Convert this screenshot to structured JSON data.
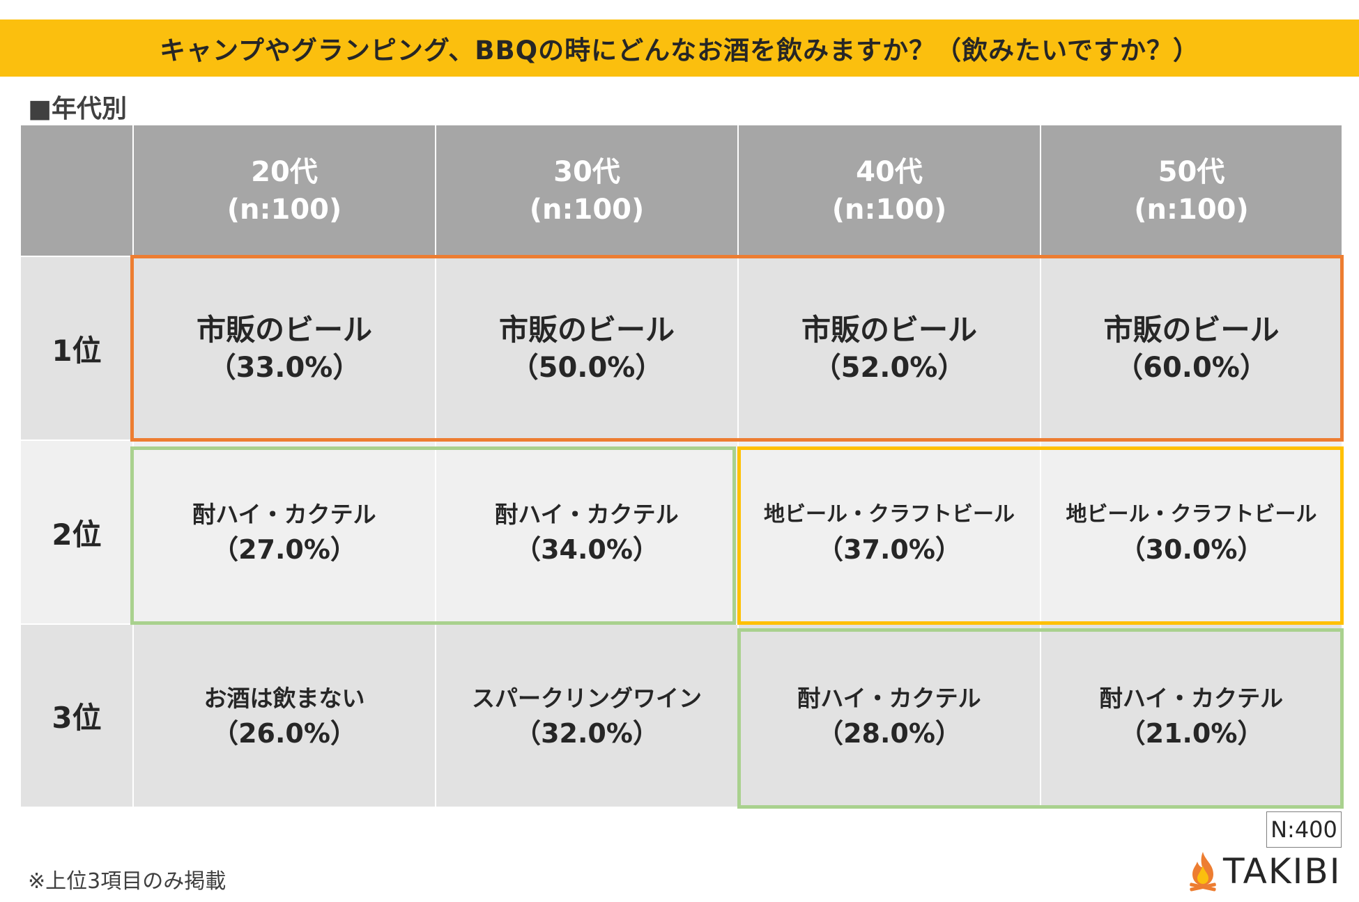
{
  "title": "キャンプやグランピング、BBQの時にどんなお酒を飲みますか？（飲みたいですか？）",
  "section_label": "■年代別",
  "columns": [
    {
      "age": "20代",
      "n": "(n:100)"
    },
    {
      "age": "30代",
      "n": "(n:100)"
    },
    {
      "age": "40代",
      "n": "(n:100)"
    },
    {
      "age": "50代",
      "n": "(n:100)"
    }
  ],
  "ranks": [
    "1位",
    "2位",
    "3位"
  ],
  "cells": [
    [
      {
        "item": "市販のビール",
        "pct": "（33.0%）"
      },
      {
        "item": "市販のビール",
        "pct": "（50.0%）"
      },
      {
        "item": "市販のビール",
        "pct": "（52.0%）"
      },
      {
        "item": "市販のビール",
        "pct": "（60.0%）"
      }
    ],
    [
      {
        "item": "酎ハイ・カクテル",
        "pct": "（27.0%）"
      },
      {
        "item": "酎ハイ・カクテル",
        "pct": "（34.0%）"
      },
      {
        "item": "地ビール・クラフトビール",
        "pct": "（37.0%）"
      },
      {
        "item": "地ビール・クラフトビール",
        "pct": "（30.0%）"
      }
    ],
    [
      {
        "item": "お酒は飲まない",
        "pct": "（26.0%）"
      },
      {
        "item": "スパークリングワイン",
        "pct": "（32.0%）"
      },
      {
        "item": "酎ハイ・カクテル",
        "pct": "（28.0%）"
      },
      {
        "item": "酎ハイ・カクテル",
        "pct": "（21.0%）"
      }
    ]
  ],
  "chart_data": {
    "type": "table",
    "title": "キャンプやグランピング、BBQの時にどんなお酒を飲みますか？（飲みたいですか？）",
    "columns": [
      "20代",
      "30代",
      "40代",
      "50代"
    ],
    "column_n": [
      100,
      100,
      100,
      100
    ],
    "rows": [
      "1位",
      "2位",
      "3位"
    ],
    "values": [
      [
        {
          "item": "市販のビール",
          "pct": 33.0
        },
        {
          "item": "市販のビール",
          "pct": 50.0
        },
        {
          "item": "市販のビール",
          "pct": 52.0
        },
        {
          "item": "市販のビール",
          "pct": 60.0
        }
      ],
      [
        {
          "item": "酎ハイ・カクテル",
          "pct": 27.0
        },
        {
          "item": "酎ハイ・カクテル",
          "pct": 34.0
        },
        {
          "item": "地ビール・クラフトビール",
          "pct": 37.0
        },
        {
          "item": "地ビール・クラフトビール",
          "pct": 30.0
        }
      ],
      [
        {
          "item": "お酒は飲まない",
          "pct": 26.0
        },
        {
          "item": "スパークリングワイン",
          "pct": 32.0
        },
        {
          "item": "酎ハイ・カクテル",
          "pct": 28.0
        },
        {
          "item": "酎ハイ・カクテル",
          "pct": 21.0
        }
      ]
    ],
    "total_n": 400,
    "highlight_colors": {
      "beer": "#ed7d31",
      "chuhai": "#a9d18e",
      "craft": "#ffc000"
    }
  },
  "footnote": "※上位3項目のみ掲載",
  "total_n": "N:400",
  "brand": "TAKIBI",
  "colors": {
    "banner": "#fbbf0e",
    "header": "#a6a6a6",
    "cell_dark": "#e2e2e2",
    "cell_light": "#f0f0f0",
    "orange": "#ed7d31",
    "green": "#a9d18e",
    "yellow": "#ffc000"
  }
}
